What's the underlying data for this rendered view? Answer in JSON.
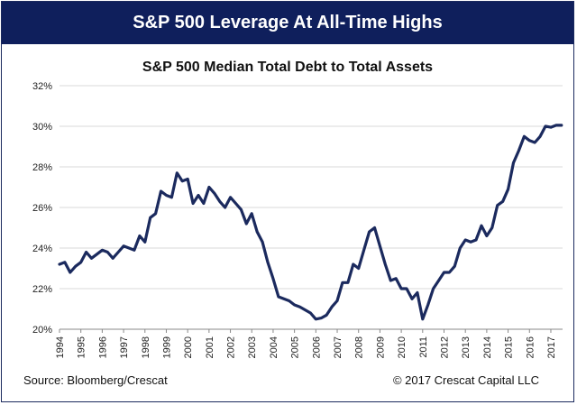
{
  "banner": {
    "title": "S&P 500 Leverage At All-Time Highs"
  },
  "footer": {
    "source": "Source: Bloomberg/Crescat",
    "copyright": "© 2017 Crescat Capital LLC"
  },
  "colors": {
    "banner": "#0f1f5c",
    "line": "#1b2a5e",
    "grid": "#d9d9d9"
  },
  "chart_data": {
    "type": "line",
    "title": "S&P 500 Median Total Debt to Total Assets",
    "xlabel": "",
    "ylabel": "",
    "ylim": [
      20,
      32
    ],
    "yticks": [
      20,
      22,
      24,
      26,
      28,
      30,
      32
    ],
    "ytick_labels": [
      "20%",
      "22%",
      "24%",
      "26%",
      "28%",
      "30%",
      "32%"
    ],
    "xlim": [
      1994,
      2017.55
    ],
    "xticks": [
      1994,
      1995,
      1996,
      1997,
      1998,
      1999,
      2000,
      2001,
      2002,
      2003,
      2004,
      2005,
      2006,
      2007,
      2008,
      2009,
      2010,
      2011,
      2012,
      2013,
      2014,
      2015,
      2016,
      2017
    ],
    "xtick_labels": [
      "1994",
      "1995",
      "1996",
      "1997",
      "1998",
      "1999",
      "2000",
      "2001",
      "2002",
      "2003",
      "2004",
      "2005",
      "2006",
      "2007",
      "2008",
      "2009",
      "2010",
      "2011",
      "2012",
      "2013",
      "2014",
      "2015",
      "2016",
      "2017"
    ],
    "grid": "horizontal",
    "legend": false,
    "series": [
      {
        "x": [
          1994.0,
          1994.25,
          1994.5,
          1994.75,
          1995.0,
          1995.25,
          1995.5,
          1995.75,
          1996.0,
          1996.25,
          1996.5,
          1996.75,
          1997.0,
          1997.25,
          1997.5,
          1997.75,
          1998.0,
          1998.25,
          1998.5,
          1998.75,
          1999.0,
          1999.25,
          1999.5,
          1999.75,
          2000.0,
          2000.25,
          2000.5,
          2000.75,
          2001.0,
          2001.25,
          2001.5,
          2001.75,
          2002.0,
          2002.25,
          2002.5,
          2002.75,
          2003.0,
          2003.25,
          2003.5,
          2003.75,
          2004.0,
          2004.25,
          2004.5,
          2004.75,
          2005.0,
          2005.25,
          2005.5,
          2005.75,
          2006.0,
          2006.25,
          2006.5,
          2006.75,
          2007.0,
          2007.25,
          2007.5,
          2007.75,
          2008.0,
          2008.25,
          2008.5,
          2008.75,
          2009.0,
          2009.25,
          2009.5,
          2009.75,
          2010.0,
          2010.25,
          2010.5,
          2010.75,
          2011.0,
          2011.25,
          2011.5,
          2011.75,
          2012.0,
          2012.25,
          2012.5,
          2012.75,
          2013.0,
          2013.25,
          2013.5,
          2013.75,
          2014.0,
          2014.25,
          2014.5,
          2014.75,
          2015.0,
          2015.25,
          2015.5,
          2015.75,
          2016.0,
          2016.25,
          2016.5,
          2016.75,
          2017.0,
          2017.25,
          2017.5
        ],
        "values": [
          23.2,
          23.3,
          22.8,
          23.1,
          23.3,
          23.8,
          23.5,
          23.7,
          23.9,
          23.8,
          23.5,
          23.8,
          24.1,
          24.0,
          23.9,
          24.6,
          24.3,
          25.5,
          25.7,
          26.8,
          26.6,
          26.5,
          27.7,
          27.3,
          27.4,
          26.2,
          26.6,
          26.2,
          27.0,
          26.7,
          26.3,
          26.0,
          26.5,
          26.2,
          25.9,
          25.2,
          25.7,
          24.8,
          24.3,
          23.3,
          22.5,
          21.6,
          21.5,
          21.4,
          21.2,
          21.1,
          20.95,
          20.8,
          20.5,
          20.55,
          20.7,
          21.1,
          21.4,
          22.3,
          22.3,
          23.2,
          23.0,
          23.9,
          24.8,
          25.0,
          24.1,
          23.2,
          22.4,
          22.5,
          22.0,
          22.0,
          21.5,
          21.8,
          20.5,
          21.2,
          22.0,
          22.4,
          22.8,
          22.8,
          23.1,
          24.0,
          24.4,
          24.3,
          24.4,
          25.1,
          24.6,
          25.0,
          26.1,
          26.3,
          26.9,
          28.2,
          28.8,
          29.5,
          29.3,
          29.2,
          29.5,
          30.0,
          29.95,
          30.05,
          30.05
        ]
      }
    ]
  }
}
